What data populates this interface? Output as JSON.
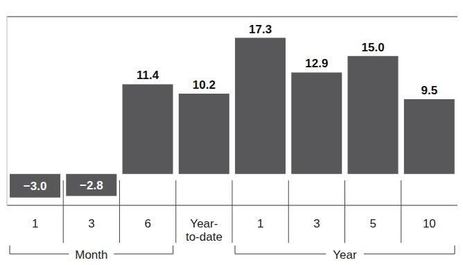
{
  "chart_data": {
    "type": "bar",
    "categories": [
      "1",
      "3",
      "6",
      "Year-to-date",
      "1",
      "3",
      "5",
      "10"
    ],
    "values": [
      -3.0,
      -2.8,
      11.4,
      10.2,
      17.3,
      12.9,
      15.0,
      9.5
    ],
    "value_labels": [
      "−3.0",
      "−2.8",
      "11.4",
      "10.2",
      "17.3",
      "12.9",
      "15.0",
      "9.5"
    ],
    "groups": [
      {
        "label": "Month",
        "start": 0,
        "end": 2
      },
      {
        "label": "Year",
        "start": 4,
        "end": 7
      }
    ],
    "color": "#58585a",
    "ylim": [
      -4,
      20
    ],
    "yticks": [
      0
    ],
    "grid": true,
    "data_labels": true,
    "tick_labels": "x"
  }
}
